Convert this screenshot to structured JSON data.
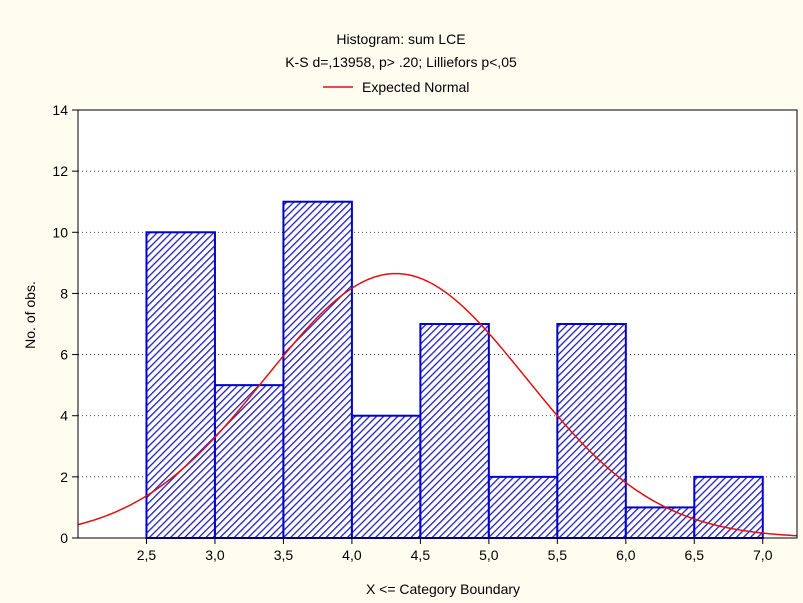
{
  "colors": {
    "background": "#FFFDF0",
    "plot_background": "#FFFFFF",
    "bar_stroke": "#0000CC",
    "bar_hatch": "#1F1FC8",
    "curve": "#E01010",
    "axis": "#000000"
  },
  "chart_data": {
    "type": "bar",
    "title": "Histogram: sum LCE",
    "subtitle": "K-S d=,13958, p> .20; Lilliefors p<,05",
    "legend": {
      "placement": "top",
      "entries": [
        {
          "name": "Expected Normal",
          "mark": "line",
          "color": "#E01010"
        }
      ]
    },
    "xlabel": "X <= Category Boundary",
    "ylabel": "No. of obs.",
    "xlim": [
      2.0,
      7.25
    ],
    "ylim": [
      0,
      14
    ],
    "x_ticks": [
      2.5,
      3.0,
      3.5,
      4.0,
      4.5,
      5.0,
      5.5,
      6.0,
      6.5,
      7.0
    ],
    "x_tick_labels": [
      "2,5",
      "3,0",
      "3,5",
      "4,0",
      "4,5",
      "5,0",
      "5,5",
      "6,0",
      "6,5",
      "7,0"
    ],
    "y_ticks": [
      0,
      2,
      4,
      6,
      8,
      10,
      12,
      14
    ],
    "y_tick_labels": [
      "0",
      "2",
      "4",
      "6",
      "8",
      "10",
      "12",
      "14"
    ],
    "grid": {
      "horizontal": true,
      "style": "dotted",
      "vertical": false
    },
    "bars": [
      {
        "x0": 2.5,
        "x1": 3.0,
        "value": 10
      },
      {
        "x0": 3.0,
        "x1": 3.5,
        "value": 5
      },
      {
        "x0": 3.5,
        "x1": 4.0,
        "value": 11
      },
      {
        "x0": 4.0,
        "x1": 4.5,
        "value": 4
      },
      {
        "x0": 4.5,
        "x1": 5.0,
        "value": 7
      },
      {
        "x0": 5.0,
        "x1": 5.5,
        "value": 2
      },
      {
        "x0": 5.5,
        "x1": 6.0,
        "value": 7
      },
      {
        "x0": 6.0,
        "x1": 6.5,
        "value": 1
      },
      {
        "x0": 6.5,
        "x1": 7.0,
        "value": 2
      }
    ],
    "expected_normal": {
      "mean": 4.32,
      "peak": 8.65,
      "sd": 0.95
    }
  }
}
